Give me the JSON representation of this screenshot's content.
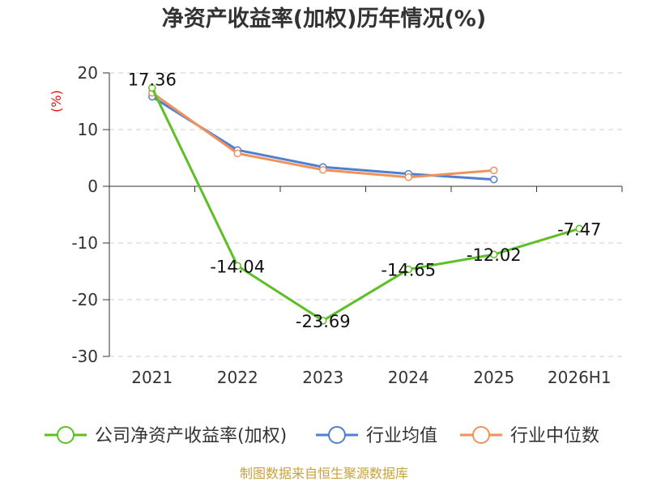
{
  "chart_data": {
    "type": "line",
    "title": "净资产收益率(加权)历年情况(%)",
    "ylabel": "(%)",
    "categories": [
      "2021",
      "2022",
      "2023",
      "2024",
      "2025",
      "2026H1"
    ],
    "ylim": [
      -30,
      20
    ],
    "yticks": [
      20,
      10,
      0,
      -10,
      -20,
      -30
    ],
    "grid": true,
    "legend_position": "bottom",
    "series": [
      {
        "name": "公司净资产收益率(加权)",
        "color": "#5cbf24",
        "values": [
          17.36,
          -14.04,
          -23.69,
          -14.65,
          -12.02,
          -7.47
        ],
        "labels": [
          "17.36",
          "-14.04",
          "-23.69",
          "-14.65",
          "-12.02",
          "-7.47"
        ]
      },
      {
        "name": "行业均值",
        "color": "#4f7fd0",
        "values": [
          15.8,
          6.4,
          3.4,
          2.2,
          1.2,
          null
        ]
      },
      {
        "name": "行业中位数",
        "color": "#f0925c",
        "values": [
          16.5,
          5.8,
          2.9,
          1.6,
          2.8,
          null
        ]
      }
    ]
  },
  "source_note": "制图数据来自恒生聚源数据库"
}
